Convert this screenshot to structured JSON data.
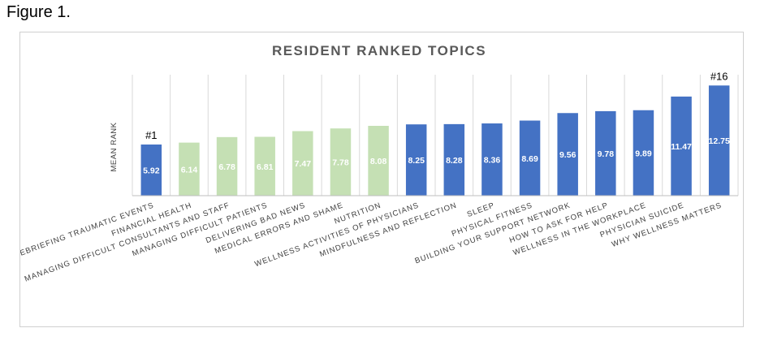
{
  "figure_caption": "Figure 1.",
  "colors": {
    "blue": "#4472c4",
    "green": "#c5e0b4",
    "gridline": "#d9d9d9",
    "axis": "#bfbfbf"
  },
  "chart_data": {
    "type": "bar",
    "title": "RESIDENT RANKED TOPICS",
    "xlabel": "",
    "ylabel": "MEAN RANK",
    "ylim": [
      0,
      14
    ],
    "grid": "vertical",
    "legend": "none",
    "categories": [
      "DEBRIEFING TRAUMATIC EVENTS",
      "FINANCIAL HEALTH",
      "MANAGING DIFFICULT CONSULTANTS AND STAFF",
      "MANAGING DIFFICULT PATIENTS",
      "DELIVERING BAD NEWS",
      "MEDICAL ERRORS AND SHAME",
      "NUTRITION",
      "WELLNESS ACTIVITIES OF PHYSICIANS",
      "MINDFULNESS AND REFLECTION",
      "SLEEP",
      "PHYSICAL FITNESS",
      "BUILDING YOUR SUPPORT NETWORK",
      "HOW TO ASK FOR HELP",
      "WELLNESS IN THE WORKPLACE",
      "PHYSICIAN SUICIDE",
      "WHY WELLNESS MATTERS"
    ],
    "values": [
      5.92,
      6.14,
      6.78,
      6.81,
      7.47,
      7.78,
      8.08,
      8.25,
      8.28,
      8.36,
      8.69,
      9.56,
      9.78,
      9.89,
      11.47,
      12.75
    ],
    "value_labels": [
      "5.92",
      "6.14",
      "6.78",
      "6.81",
      "7.47",
      "7.78",
      "8.08",
      "8.25",
      "8.28",
      "8.36",
      "8.69",
      "9.56",
      "9.78",
      "9.89",
      "11.47",
      "12.75"
    ],
    "bar_colors": [
      "blue",
      "green",
      "green",
      "green",
      "green",
      "green",
      "green",
      "blue",
      "blue",
      "blue",
      "blue",
      "blue",
      "blue",
      "blue",
      "blue",
      "blue"
    ],
    "annotations": [
      {
        "index": 0,
        "text": "#1"
      },
      {
        "index": 15,
        "text": "#16"
      }
    ]
  }
}
